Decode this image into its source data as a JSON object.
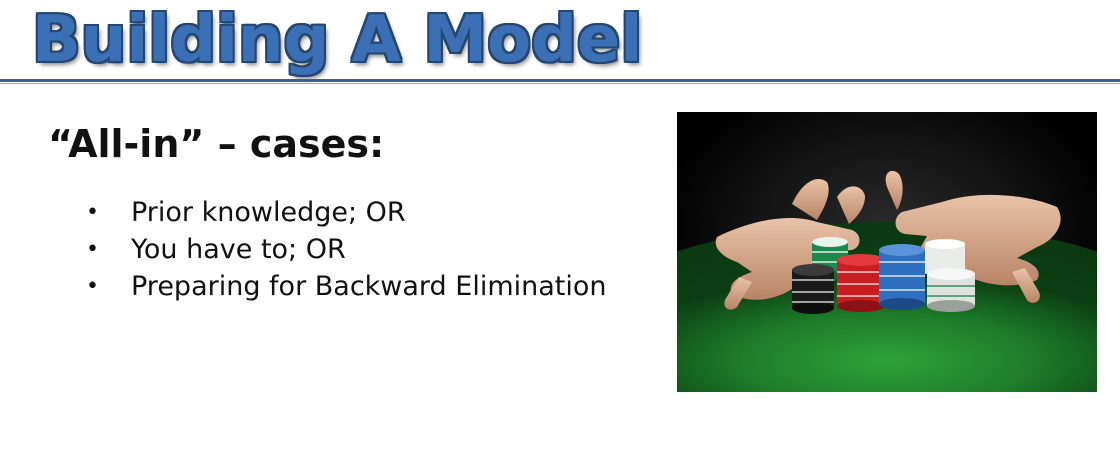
{
  "slide": {
    "title": "Building A Model",
    "subtitle": "“All-in” – cases:",
    "bullets": [
      "Prior knowledge; OR",
      "You have to; OR",
      "Preparing for Backward Elimination"
    ],
    "bullet_symbol": "•"
  },
  "colors": {
    "title": "#3b6fb6",
    "rule": "#3a5f9a",
    "felt": "#1f8a2e"
  },
  "image": {
    "icon": "poker-chips-photo"
  }
}
